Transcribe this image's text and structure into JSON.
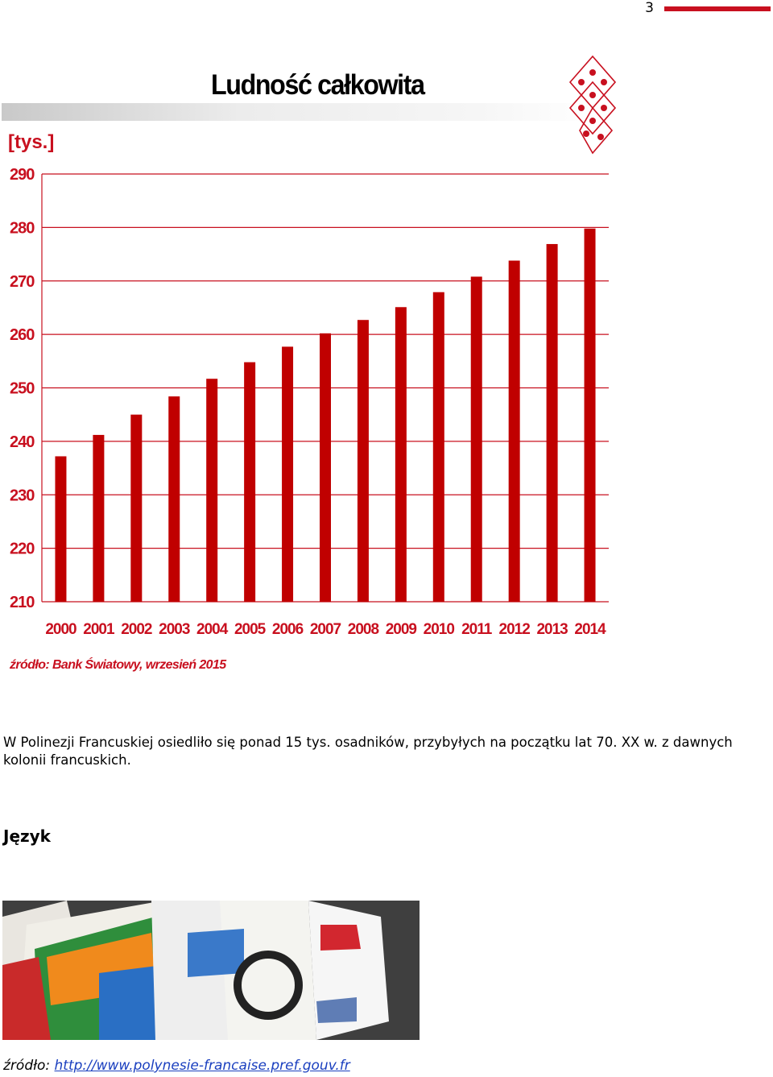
{
  "header": {
    "page_number": "3"
  },
  "chart_data": {
    "type": "bar",
    "title": "Ludność całkowita",
    "ylabel": "[tys.]",
    "xlabel": "",
    "categories": [
      "2000",
      "2001",
      "2002",
      "2003",
      "2004",
      "2005",
      "2006",
      "2007",
      "2008",
      "2009",
      "2010",
      "2011",
      "2012",
      "2013",
      "2014"
    ],
    "values": [
      237.2,
      241.2,
      245.0,
      248.4,
      251.7,
      254.8,
      257.7,
      260.2,
      262.7,
      265.1,
      267.9,
      270.8,
      273.8,
      276.9,
      279.8
    ],
    "ylim": [
      210,
      290
    ],
    "yticks": [
      "210",
      "220",
      "230",
      "240",
      "250",
      "260",
      "270",
      "280",
      "290"
    ],
    "grid": true,
    "bar_color": "#c00000",
    "accent_color": "#c8101f",
    "source": "źródło: Bank Światowy, wrzesień 2015"
  },
  "body": {
    "paragraph": "W Polinezji Francuskiej osiedliło się ponad 15 tys. osadników, przybyłych na początku lat 70. XX w. z dawnych kolonii francuskich.",
    "section_heading": "Język",
    "source_prefix": "źródło: ",
    "source_link": "http://www.polynesie-francaise.pref.gouv.fr"
  }
}
